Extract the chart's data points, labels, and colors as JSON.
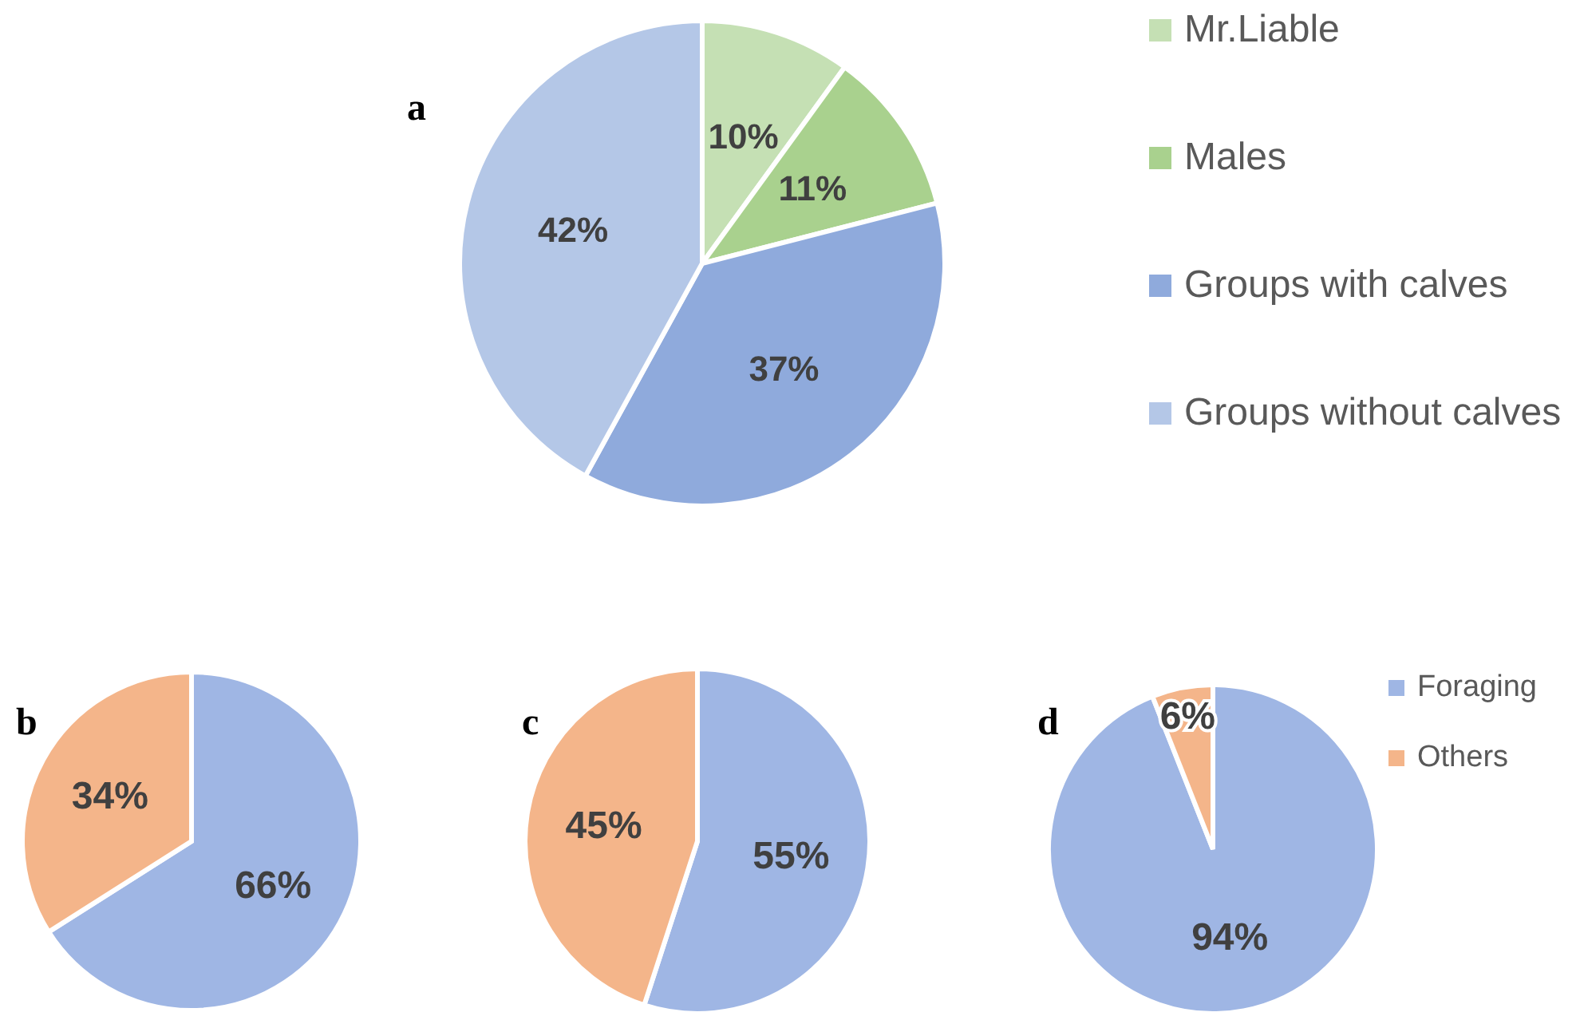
{
  "chart_data": [
    {
      "type": "pie",
      "title": "a",
      "categories": [
        "Mr.Liable",
        "Males",
        "Groups with calves",
        "Groups without calves"
      ],
      "values": [
        10,
        11,
        37,
        42
      ],
      "value_labels": [
        "10%",
        "11%",
        "37%",
        "42%"
      ],
      "colors": [
        "#c5e0b4",
        "#a9d18e",
        "#8faadc",
        "#b4c7e7"
      ],
      "legend": "right"
    },
    {
      "type": "pie",
      "title": "b",
      "categories": [
        null,
        null
      ],
      "values": [
        66,
        34
      ],
      "value_labels": [
        "66%",
        "34%"
      ],
      "colors": [
        "#9fb6e4",
        "#f4b58a"
      ]
    },
    {
      "type": "pie",
      "title": "c",
      "categories": [
        null,
        null
      ],
      "values": [
        55,
        45
      ],
      "value_labels": [
        "55%",
        "45%"
      ],
      "colors": [
        "#9fb6e4",
        "#f4b58a"
      ]
    },
    {
      "type": "pie",
      "title": "d",
      "categories": [
        "Foraging",
        "Others"
      ],
      "values": [
        94,
        6
      ],
      "value_labels": [
        "94%",
        "6%"
      ],
      "colors": [
        "#9fb6e4",
        "#f4b58a"
      ],
      "legend": "right"
    }
  ]
}
